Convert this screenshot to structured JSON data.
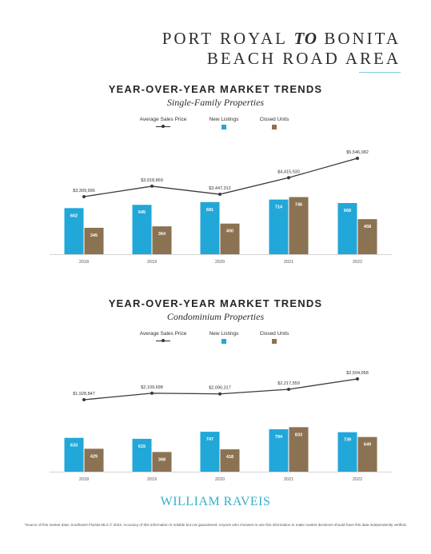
{
  "header": {
    "title_line1_a": "PORT ROYAL",
    "title_line1_connector": "TO",
    "title_line1_b": "BONITA",
    "title_line2": "BEACH ROAD AREA"
  },
  "legend": {
    "avg_price": "Average Sales Price",
    "new_listings": "New Listings",
    "closed_units": "Closed Units"
  },
  "colors": {
    "new_listings": "#22a7d9",
    "closed_units": "#8b7252",
    "line": "#3a3a3a",
    "axis": "#d4d4d4",
    "accent_rule": "#7ecbd6",
    "brand": "#33b0cc"
  },
  "sections": [
    {
      "heading": "YEAR-OVER-YEAR MARKET TRENDS",
      "subheading": "Single-Family Properties"
    },
    {
      "heading": "YEAR-OVER-YEAR MARKET TRENDS",
      "subheading": "Condominium Properties"
    }
  ],
  "chart_data": [
    {
      "type": "bar",
      "categories": [
        "2018",
        "2019",
        "2020",
        "2021",
        "2022"
      ],
      "series": [
        {
          "name": "New Listings",
          "values": [
            602,
            645,
            681,
            714,
            668
          ]
        },
        {
          "name": "Closed Units",
          "values": [
            345,
            364,
            400,
            746,
            458
          ]
        }
      ],
      "line_series": {
        "name": "Average Sales Price",
        "values": [
          3309996,
          3918869,
          3447312,
          4415930,
          5546082
        ],
        "labels": [
          "$3,309,996",
          "$3,918,869",
          "$3,447,312",
          "$4,415,930",
          "$5,546,082"
        ]
      },
      "legend": "top-center",
      "grid": false
    },
    {
      "type": "bar",
      "categories": [
        "2018",
        "2019",
        "2020",
        "2021",
        "2022"
      ],
      "series": [
        {
          "name": "New Listings",
          "values": [
            633,
            615,
            747,
            794,
            739
          ]
        },
        {
          "name": "Closed Units",
          "values": [
            429,
            368,
            418,
            833,
            649
          ]
        }
      ],
      "line_series": {
        "name": "Average Sales Price",
        "values": [
          1928847,
          2109698,
          2090317,
          2217559,
          2504958
        ],
        "labels": [
          "$1,928,847",
          "$2,109,698",
          "$2,090,317",
          "$2,217,559",
          "$2,504,958"
        ]
      },
      "legend": "top-center",
      "grid": false
    }
  ],
  "footer": {
    "logo": "WILLIAM RAVEIS",
    "footnote": "*Source of this market data: Southwest Florida MLS © 2022. Accuracy of this information is reliable but not guaranteed. Anyone who chooses to use this information to make market decisions should have this data independently verified."
  }
}
